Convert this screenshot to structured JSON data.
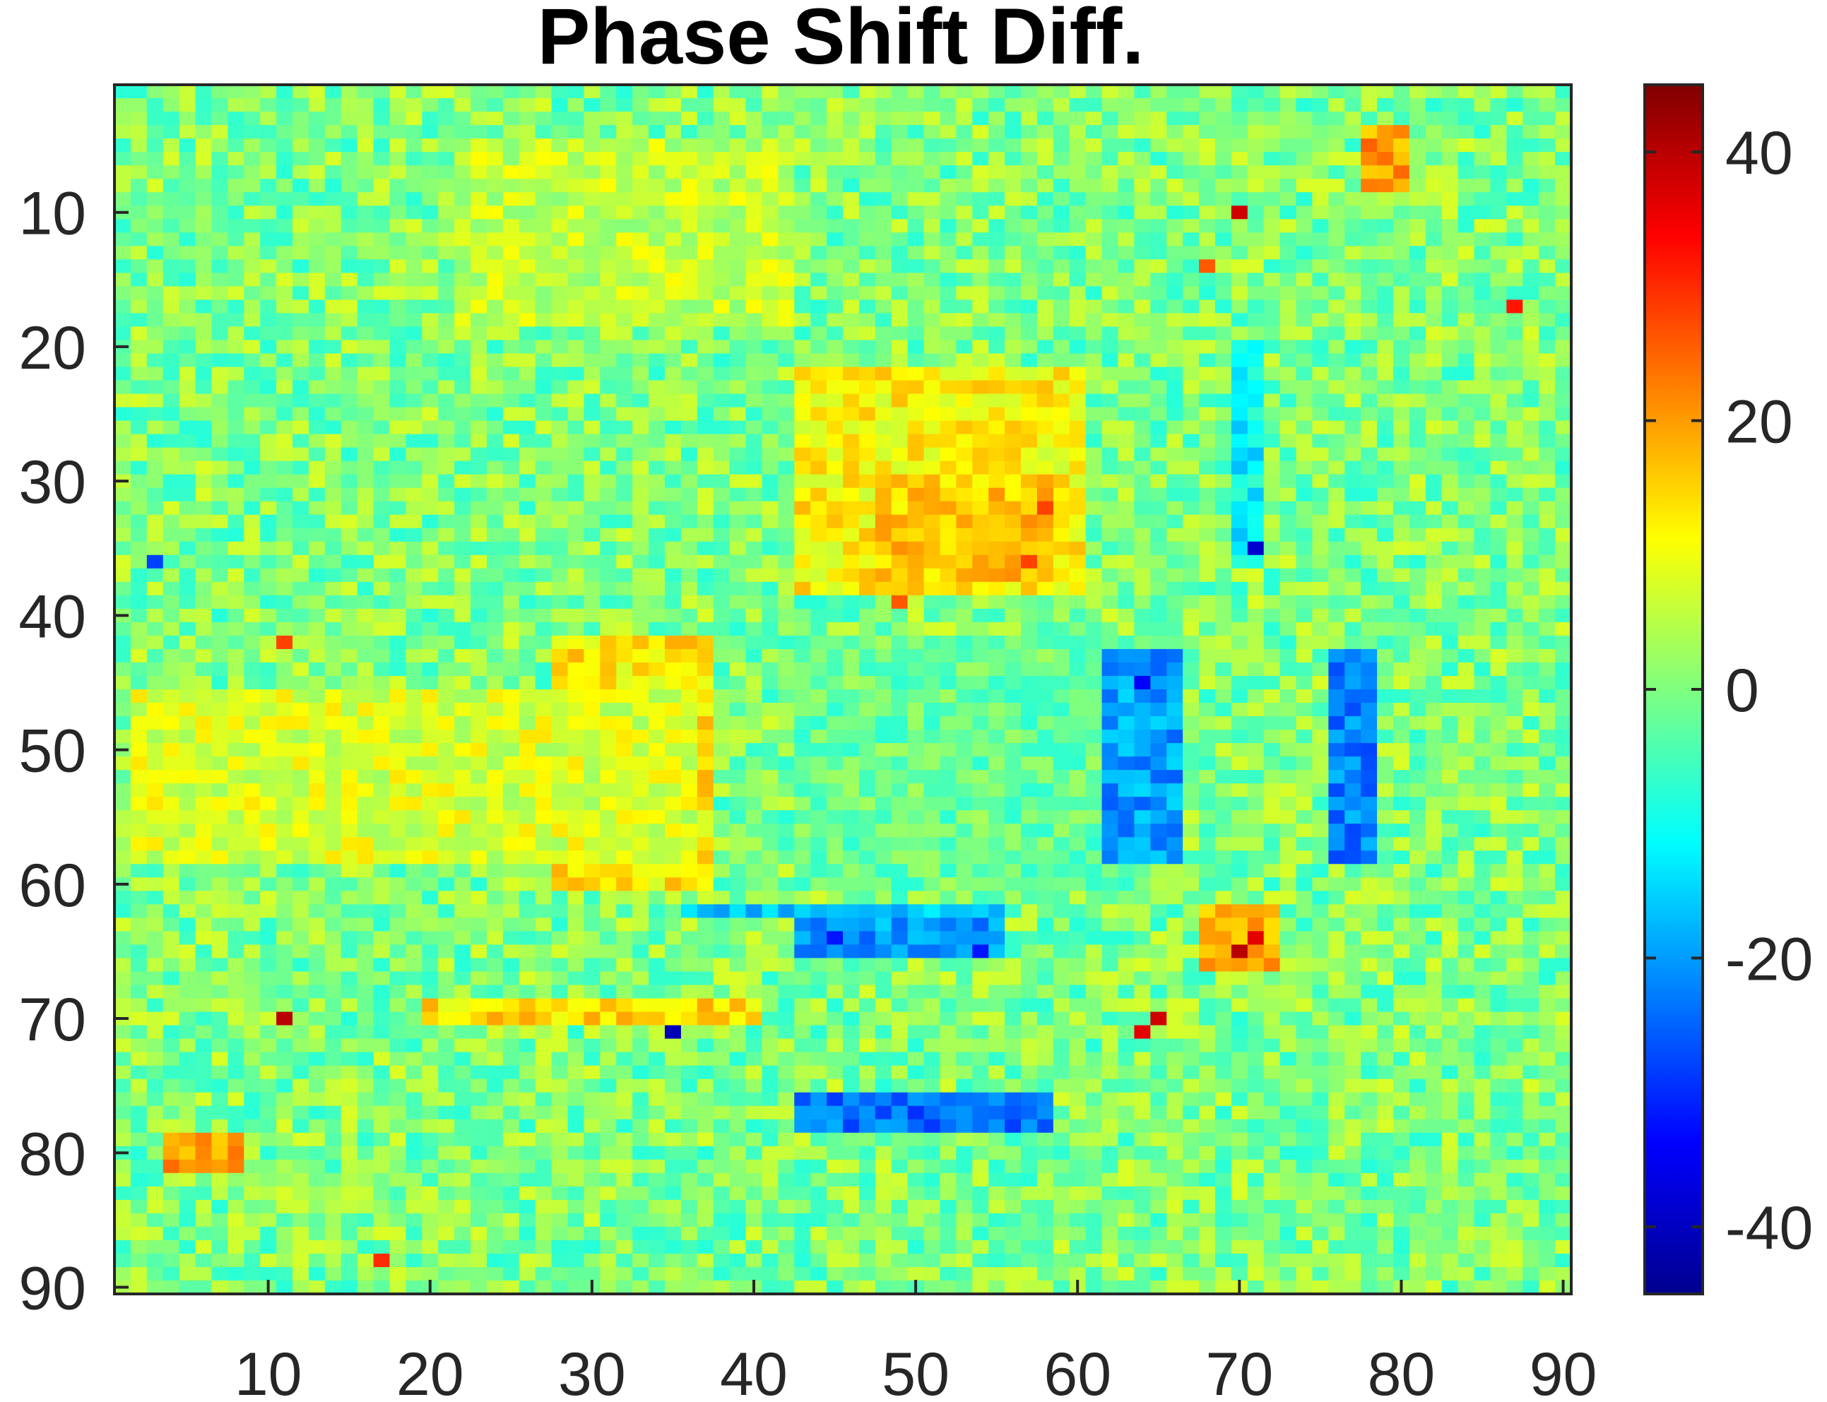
{
  "chart_data": {
    "type": "heatmap",
    "title": "Phase Shift Diff.",
    "xlabel": "",
    "ylabel": "",
    "n_rows": 90,
    "n_cols": 90,
    "x_ticks": [
      10,
      20,
      30,
      40,
      50,
      60,
      70,
      80,
      90
    ],
    "y_ticks": [
      10,
      20,
      30,
      40,
      50,
      60,
      70,
      80,
      90
    ],
    "x_tick_labels": [
      "10",
      "20",
      "30",
      "40",
      "50",
      "60",
      "70",
      "80",
      "90"
    ],
    "y_tick_labels": [
      "10",
      "20",
      "30",
      "40",
      "50",
      "60",
      "70",
      "80",
      "90"
    ],
    "colorbar": {
      "min": -45,
      "max": 45,
      "ticks": [
        -40,
        -20,
        0,
        20,
        40
      ],
      "tick_labels": [
        "-40",
        "-20",
        "0",
        "20",
        "40"
      ],
      "colormap": "jet"
    },
    "base_value_approx": 0,
    "noise_amplitude_approx": 8,
    "regions": [
      {
        "rows": [
          22,
          38
        ],
        "cols": [
          43,
          60
        ],
        "value": 12
      },
      {
        "rows": [
          30,
          37
        ],
        "cols": [
          48,
          58
        ],
        "value": 16
      },
      {
        "rows": [
          5,
          18
        ],
        "cols": [
          22,
          42
        ],
        "value": 6
      },
      {
        "rows": [
          42,
          60
        ],
        "cols": [
          28,
          37
        ],
        "value": 13
      },
      {
        "rows": [
          46,
          58
        ],
        "cols": [
          2,
          36
        ],
        "value": 8
      },
      {
        "rows": [
          42,
          60
        ],
        "cols": [
          43,
          62
        ],
        "value": -2
      },
      {
        "rows": [
          43,
          58
        ],
        "cols": [
          62,
          66
        ],
        "value": -20
      },
      {
        "rows": [
          43,
          58
        ],
        "cols": [
          76,
          78
        ],
        "value": -22
      },
      {
        "rows": [
          62,
          62
        ],
        "cols": [
          36,
          55
        ],
        "value": -16
      },
      {
        "rows": [
          63,
          65
        ],
        "cols": [
          43,
          55
        ],
        "value": -20
      },
      {
        "rows": [
          76,
          78
        ],
        "cols": [
          43,
          58
        ],
        "value": -24
      },
      {
        "rows": [
          69,
          70
        ],
        "cols": [
          20,
          40
        ],
        "value": 14
      },
      {
        "rows": [
          79,
          81
        ],
        "cols": [
          4,
          8
        ],
        "value": 20
      },
      {
        "rows": [
          4,
          8
        ],
        "cols": [
          78,
          80
        ],
        "value": 20
      },
      {
        "rows": [
          20,
          36
        ],
        "cols": [
          70,
          71
        ],
        "value": -12
      },
      {
        "rows": [
          62,
          66
        ],
        "cols": [
          68,
          72
        ],
        "value": 18
      }
    ],
    "points": [
      {
        "row": 10,
        "col": 70,
        "value": 38
      },
      {
        "row": 17,
        "col": 87,
        "value": 32
      },
      {
        "row": 35,
        "col": 71,
        "value": -38
      },
      {
        "row": 45,
        "col": 64,
        "value": -34
      },
      {
        "row": 64,
        "col": 71,
        "value": 36
      },
      {
        "row": 65,
        "col": 70,
        "value": 40
      },
      {
        "row": 70,
        "col": 11,
        "value": 40
      },
      {
        "row": 70,
        "col": 65,
        "value": 38
      },
      {
        "row": 71,
        "col": 35,
        "value": -40
      },
      {
        "row": 71,
        "col": 64,
        "value": 36
      },
      {
        "row": 88,
        "col": 17,
        "value": 30
      },
      {
        "row": 64,
        "col": 45,
        "value": -32
      },
      {
        "row": 65,
        "col": 54,
        "value": -32
      },
      {
        "row": 32,
        "col": 58,
        "value": 28
      },
      {
        "row": 36,
        "col": 57,
        "value": 28
      },
      {
        "row": 39,
        "col": 49,
        "value": 26
      },
      {
        "row": 42,
        "col": 11,
        "value": 28
      },
      {
        "row": 36,
        "col": 3,
        "value": -28
      },
      {
        "row": 14,
        "col": 68,
        "value": 26
      }
    ]
  }
}
